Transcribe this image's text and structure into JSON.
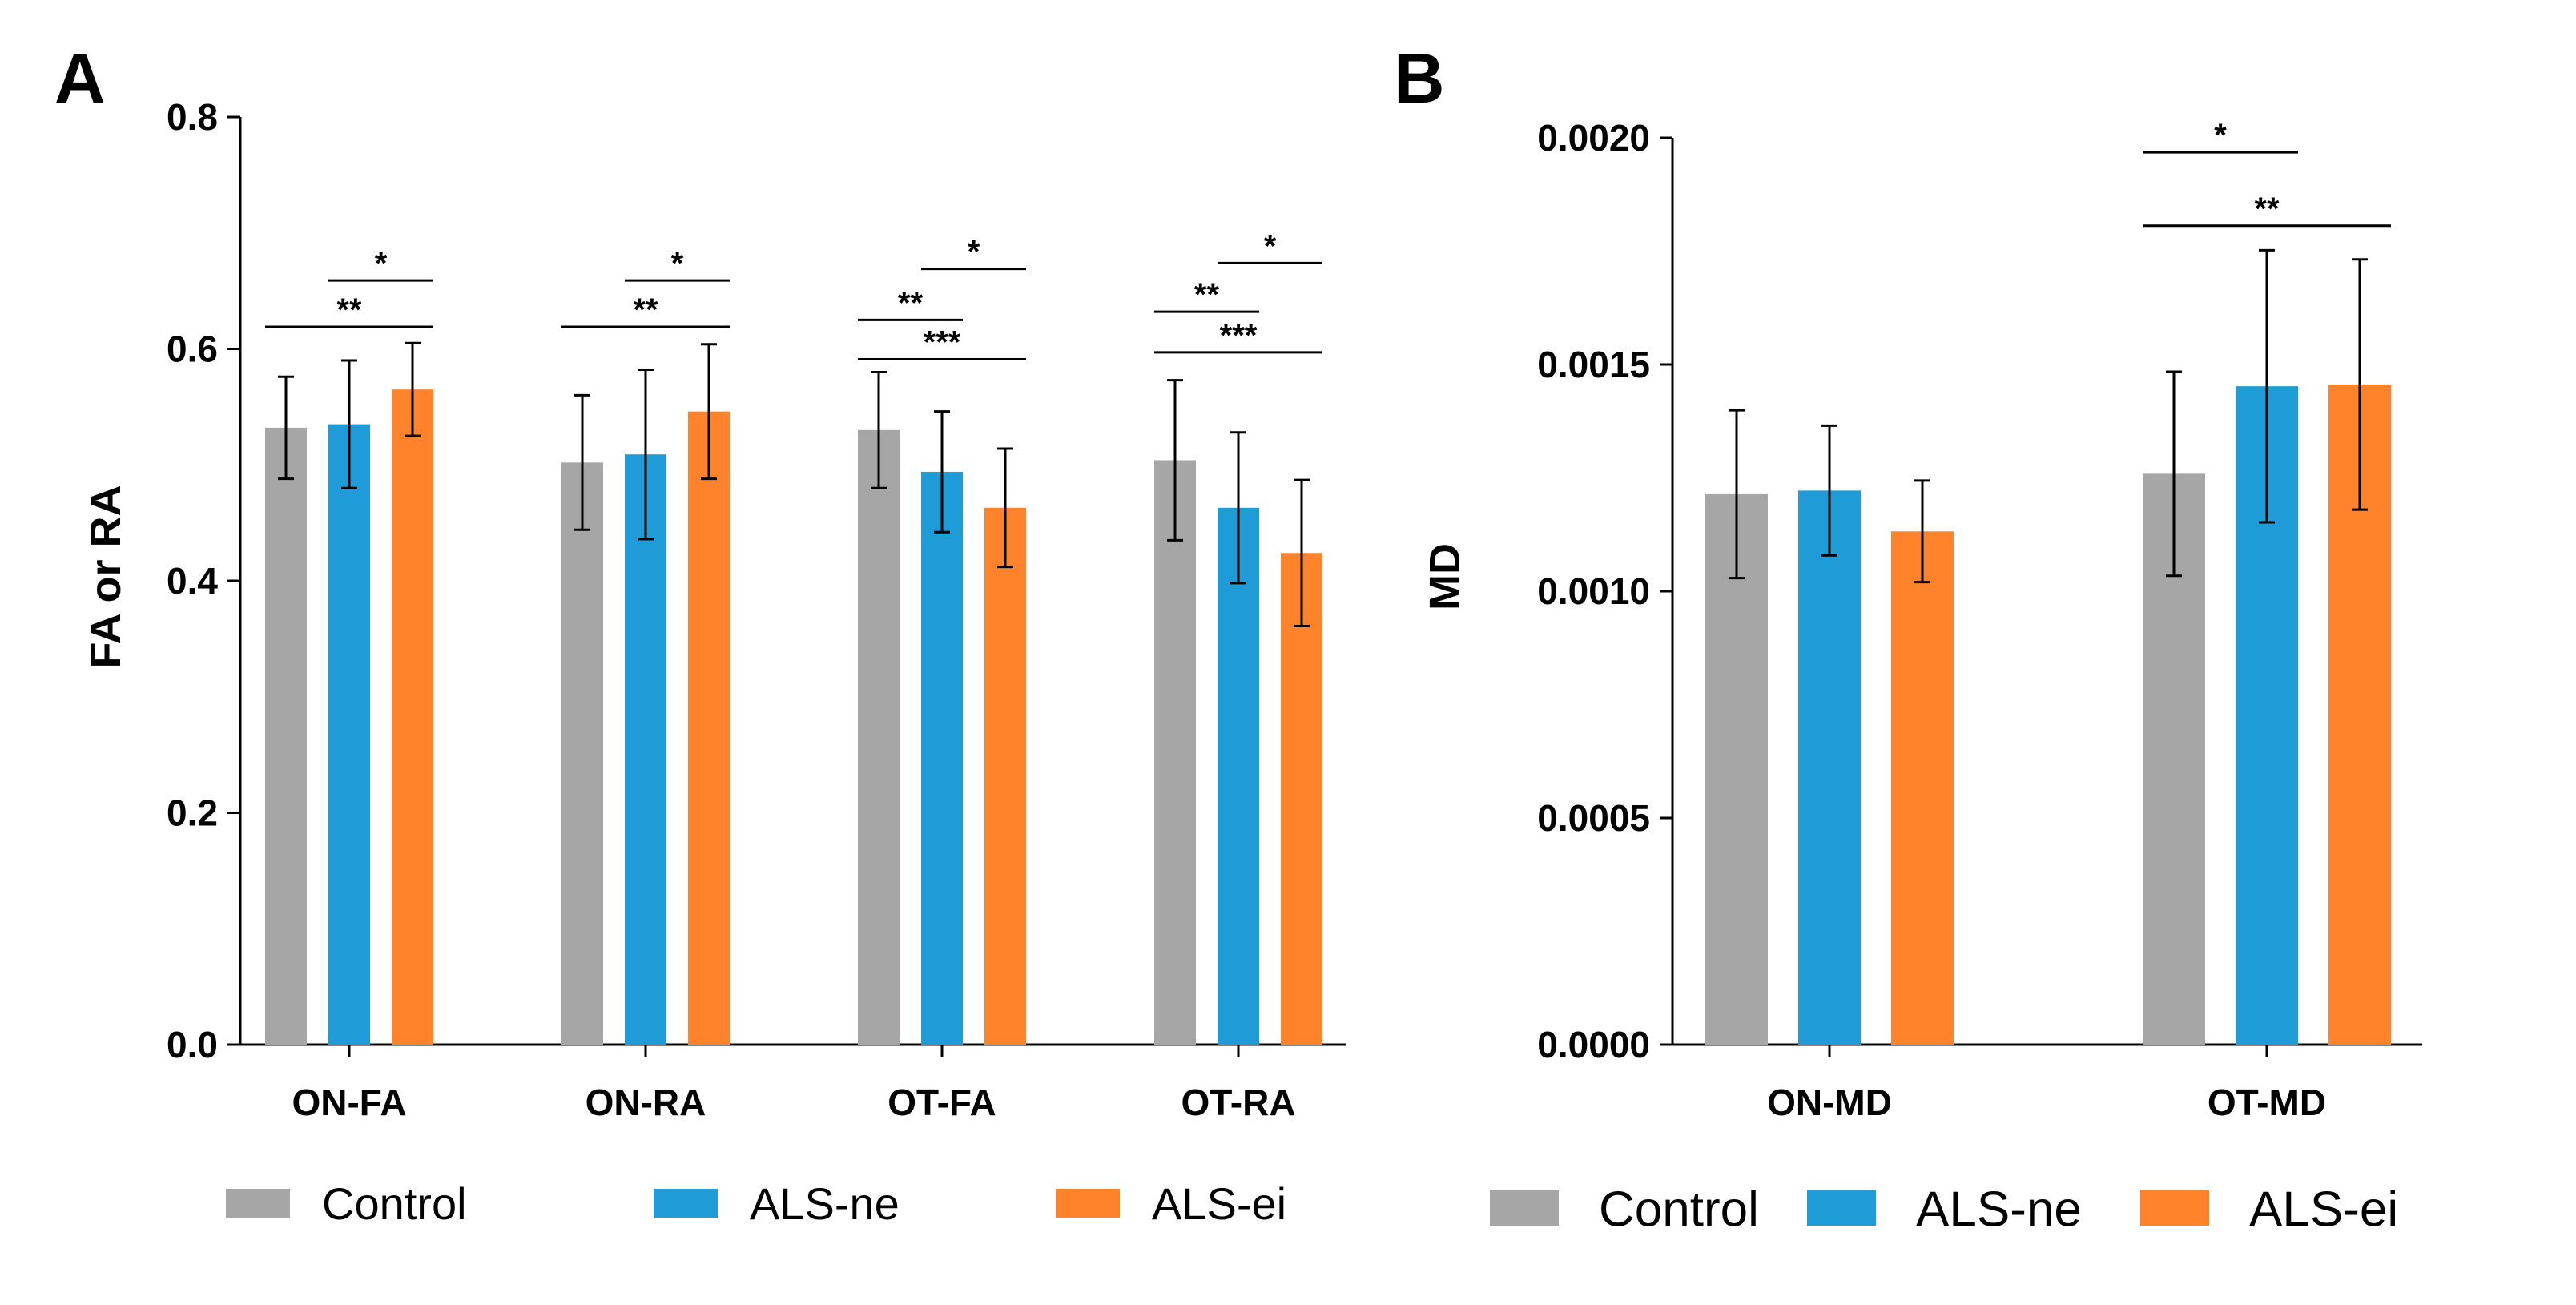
{
  "colors": {
    "Control": "#a6a6a6",
    "ALS-ne": "#1f9bd7",
    "ALS-ei": "#ff832b",
    "axis": "#000000"
  },
  "chart_data": [
    {
      "panel": "A",
      "type": "bar",
      "ylabel": "FA or RA",
      "ylim": [
        0,
        0.8
      ],
      "yticks": [
        "0.0",
        "0.2",
        "0.4",
        "0.6",
        "0.8"
      ],
      "categories": [
        "ON-FA",
        "ON-RA",
        "OT-FA",
        "OT-RA"
      ],
      "series": [
        {
          "name": "Control",
          "values": [
            0.532,
            0.502,
            0.53,
            0.504
          ],
          "errors": [
            0.044,
            0.058,
            0.05,
            0.069
          ]
        },
        {
          "name": "ALS-ne",
          "values": [
            0.535,
            0.509,
            0.494,
            0.463
          ],
          "errors": [
            0.055,
            0.073,
            0.052,
            0.065
          ]
        },
        {
          "name": "ALS-ei",
          "values": [
            0.565,
            0.546,
            0.463,
            0.424
          ],
          "errors": [
            0.04,
            0.058,
            0.051,
            0.063
          ]
        }
      ],
      "significance": [
        {
          "category": 0,
          "from": 1,
          "to": 2,
          "label": "*",
          "level": 0.659
        },
        {
          "category": 0,
          "from": 0,
          "to": 2,
          "label": "**",
          "level": 0.619
        },
        {
          "category": 1,
          "from": 1,
          "to": 2,
          "label": "*",
          "level": 0.659
        },
        {
          "category": 1,
          "from": 0,
          "to": 2,
          "label": "**",
          "level": 0.619
        },
        {
          "category": 2,
          "from": 1,
          "to": 2,
          "label": "*",
          "level": 0.669
        },
        {
          "category": 2,
          "from": 0,
          "to": 1,
          "label": "**",
          "level": 0.625
        },
        {
          "category": 2,
          "from": 0,
          "to": 2,
          "label": "***",
          "level": 0.591
        },
        {
          "category": 3,
          "from": 1,
          "to": 2,
          "label": "*",
          "level": 0.674
        },
        {
          "category": 3,
          "from": 0,
          "to": 1,
          "label": "**",
          "level": 0.632
        },
        {
          "category": 3,
          "from": 0,
          "to": 2,
          "label": "***",
          "level": 0.597
        }
      ]
    },
    {
      "panel": "B",
      "type": "bar",
      "ylabel": "MD",
      "ylim": [
        0,
        0.002
      ],
      "yticks": [
        "0.0000",
        "0.0005",
        "0.0010",
        "0.0015",
        "0.0020"
      ],
      "categories": [
        "ON-MD",
        "OT-MD"
      ],
      "series": [
        {
          "name": "Control",
          "values": [
            0.001214,
            0.001259
          ],
          "errors": [
            0.000185,
            0.000225
          ]
        },
        {
          "name": "ALS-ne",
          "values": [
            0.001222,
            0.001452
          ],
          "errors": [
            0.000143,
            0.0003
          ]
        },
        {
          "name": "ALS-ei",
          "values": [
            0.001132,
            0.001456
          ],
          "errors": [
            0.000112,
            0.000276
          ]
        }
      ],
      "significance": [
        {
          "category": 1,
          "from": 0,
          "to": 1,
          "label": "*",
          "level": 0.001968
        },
        {
          "category": 1,
          "from": 0,
          "to": 2,
          "label": "**",
          "level": 0.001806
        }
      ]
    }
  ]
}
